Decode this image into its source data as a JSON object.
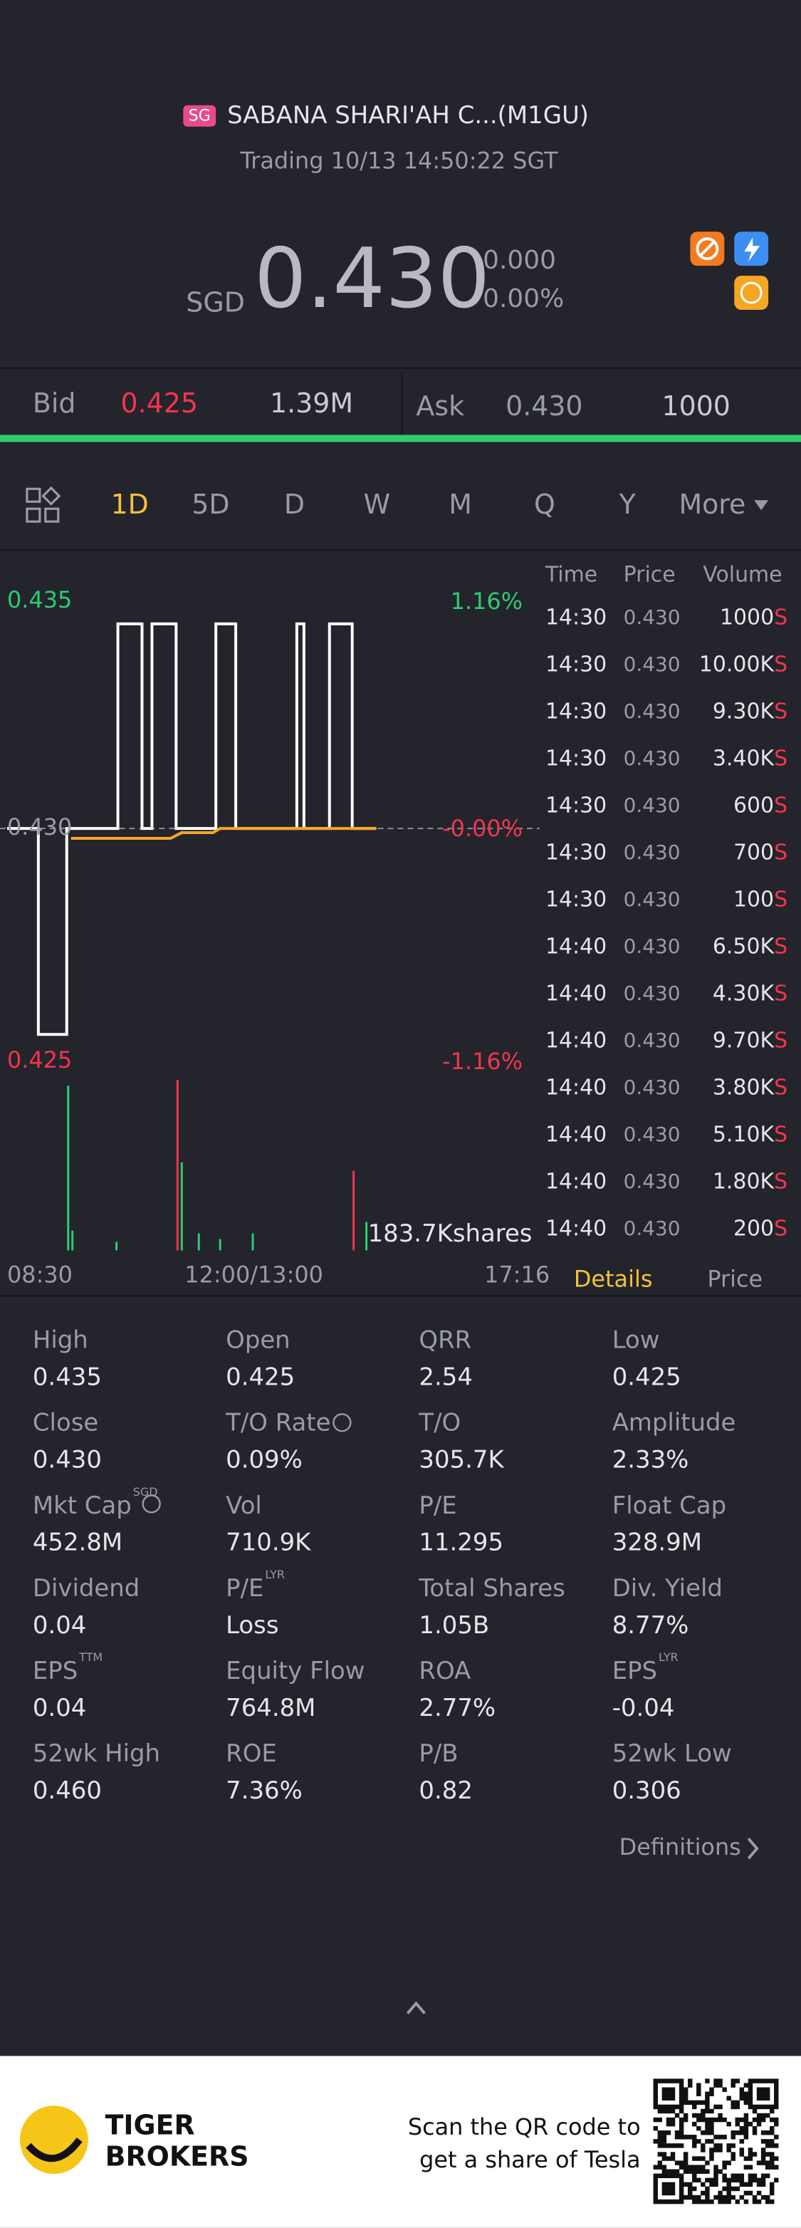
{
  "header": {
    "badge": "SG",
    "title": "SABANA SHARI'AH C...(M1GU)",
    "status": "Trading 10/13 14:50:22 SGT"
  },
  "quote": {
    "currency": "SGD",
    "price": "0.430",
    "change": "0.000",
    "change_pct": "0.00%"
  },
  "order_book": {
    "bid_label": "Bid",
    "bid_price": "0.425",
    "bid_size": "1.39M",
    "ask_label": "Ask",
    "ask_price": "0.430",
    "ask_size": "1000"
  },
  "periods": [
    "1D",
    "5D",
    "D",
    "W",
    "M",
    "Q",
    "Y",
    "More"
  ],
  "chart": {
    "price_labels": [
      "0.435",
      "0.430",
      "0.425"
    ],
    "pct_labels": [
      "1.16%",
      "-0.00%",
      "-1.16%"
    ],
    "volume_label": "183.7Kshares",
    "time_labels": [
      "08:30",
      "12:00/13:00",
      "17:16"
    ]
  },
  "trades": {
    "columns": [
      "Time",
      "Price",
      "Volume"
    ],
    "side": "S",
    "rows": [
      [
        "14:30",
        "0.430",
        "1000"
      ],
      [
        "14:30",
        "0.430",
        "10.00K"
      ],
      [
        "14:30",
        "0.430",
        "9.30K"
      ],
      [
        "14:30",
        "0.430",
        "3.40K"
      ],
      [
        "14:30",
        "0.430",
        "600"
      ],
      [
        "14:30",
        "0.430",
        "700"
      ],
      [
        "14:30",
        "0.430",
        "100"
      ],
      [
        "14:40",
        "0.430",
        "6.50K"
      ],
      [
        "14:40",
        "0.430",
        "4.30K"
      ],
      [
        "14:40",
        "0.430",
        "9.70K"
      ],
      [
        "14:40",
        "0.430",
        "3.80K"
      ],
      [
        "14:40",
        "0.430",
        "5.10K"
      ],
      [
        "14:40",
        "0.430",
        "1.80K"
      ],
      [
        "14:40",
        "0.430",
        "200"
      ]
    ]
  },
  "detail_tabs": [
    "Details",
    "Price"
  ],
  "stats": [
    {
      "label": "High",
      "value": "0.435"
    },
    {
      "label": "Open",
      "value": "0.425"
    },
    {
      "label": "QRR",
      "value": "2.54"
    },
    {
      "label": "Low",
      "value": "0.425"
    },
    {
      "label": "Close",
      "value": "0.430"
    },
    {
      "label": "T/O Rate",
      "value": "0.09%"
    },
    {
      "label": "T/O",
      "value": "305.7K"
    },
    {
      "label": "Amplitude",
      "value": "2.33%"
    },
    {
      "label": "Mkt Cap",
      "sup": "SGD",
      "value": "452.8M"
    },
    {
      "label": "Vol",
      "value": "710.9K"
    },
    {
      "label": "P/E",
      "value": "11.295"
    },
    {
      "label": "Float Cap",
      "value": "328.9M"
    },
    {
      "label": "Dividend",
      "value": "0.04"
    },
    {
      "label": "P/E",
      "sup": "LYR",
      "value": "Loss"
    },
    {
      "label": "Total Shares",
      "value": "1.05B"
    },
    {
      "label": "Div. Yield",
      "value": "8.77%"
    },
    {
      "label": "EPS",
      "sup": "TTM",
      "value": "0.04"
    },
    {
      "label": "Equity Flow",
      "value": "764.8M"
    },
    {
      "label": "ROA",
      "value": "2.77%"
    },
    {
      "label": "EPS",
      "sup": "LYR",
      "value": "-0.04"
    },
    {
      "label": "52wk High",
      "value": "0.460"
    },
    {
      "label": "ROE",
      "value": "7.36%"
    },
    {
      "label": "P/B",
      "value": "0.82"
    },
    {
      "label": "52wk Low",
      "value": "0.306"
    }
  ],
  "definitions": "Definitions",
  "footer": {
    "brand": [
      "TIGER",
      "BROKERS"
    ],
    "promo": [
      "Scan the QR code to",
      "get a share of Tesla"
    ]
  }
}
